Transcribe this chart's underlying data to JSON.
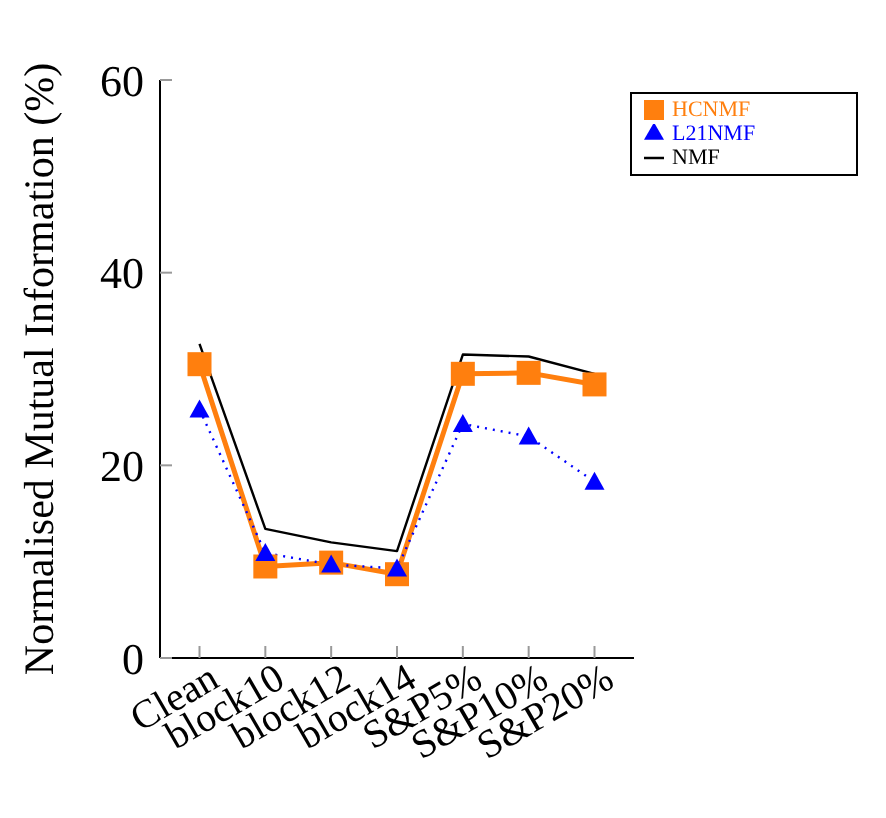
{
  "chart_data": {
    "type": "line",
    "ylabel": "Normalised Mutual Information (%)",
    "categories": [
      "Clean",
      "block10",
      "block12",
      "block14",
      "S&P5%",
      "S&P10%",
      "S&P20%"
    ],
    "series": [
      {
        "name": "NMF",
        "color": "#000000",
        "marker": "none",
        "line_style": "solid",
        "values": [
          32.6,
          13.4,
          12.0,
          11.1,
          31.5,
          31.3,
          29.5
        ]
      },
      {
        "name": "HCNMF",
        "color": "#ff7f0e",
        "marker": "square",
        "line_style": "solid",
        "values": [
          30.5,
          9.5,
          9.9,
          8.7,
          29.5,
          29.6,
          28.4
        ]
      },
      {
        "name": "L21NMF",
        "color": "#0000ff",
        "marker": "triangle",
        "line_style": "dotted",
        "values": [
          25.8,
          10.9,
          9.7,
          9.3,
          24.3,
          23.0,
          18.3
        ]
      }
    ],
    "ylim": [
      0,
      60
    ],
    "yticks": [
      0,
      20,
      40,
      60
    ],
    "grid": false,
    "legend": "top right"
  }
}
